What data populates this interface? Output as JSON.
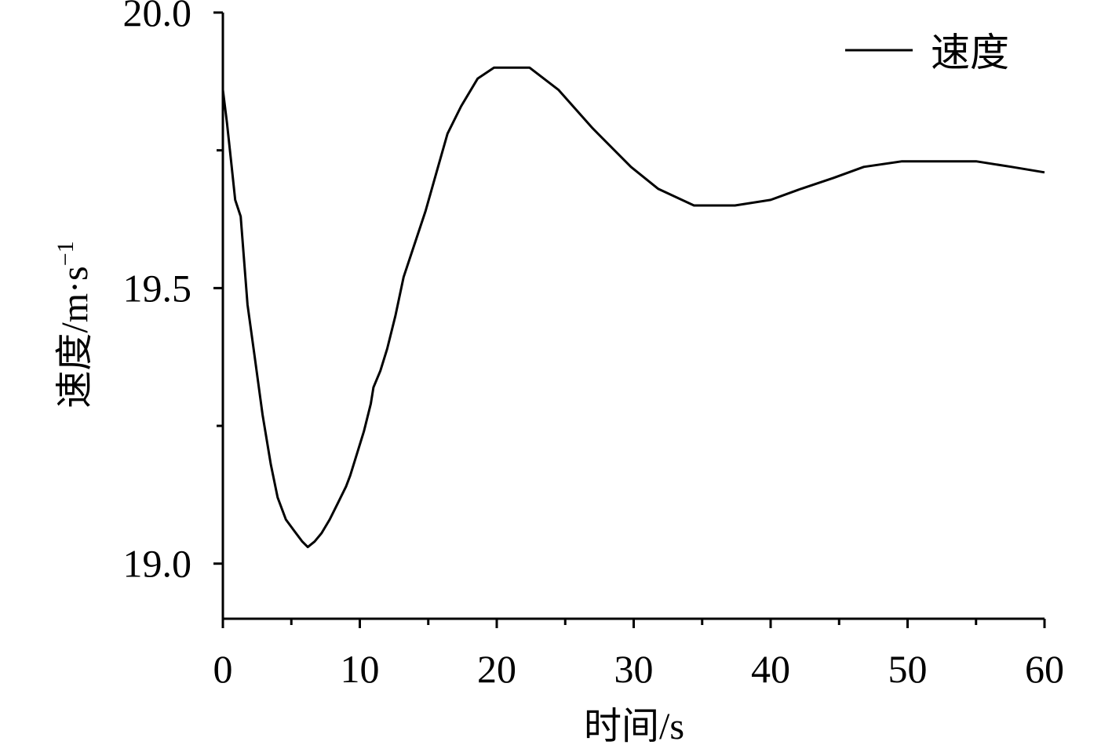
{
  "chart_data": {
    "type": "line",
    "title": "",
    "xlabel": "时间/s",
    "ylabel_main": "速度/m·s",
    "ylabel_sup": "−1",
    "xlim": [
      0,
      60
    ],
    "ylim": [
      18.9,
      20.0
    ],
    "x_ticks": [
      0,
      10,
      20,
      30,
      40,
      50,
      60
    ],
    "x_tick_labels": [
      "0",
      "10",
      "20",
      "30",
      "40",
      "50",
      "60"
    ],
    "x_minor_ticks": [
      5,
      15,
      25,
      35,
      45,
      55
    ],
    "y_ticks": [
      19.0,
      19.5,
      20.0
    ],
    "y_tick_labels": [
      "19.0",
      "19.5",
      "20.0"
    ],
    "y_minor_ticks": [
      19.25,
      19.75
    ],
    "grid": false,
    "legend_position": "top-right",
    "series": [
      {
        "name": "速度",
        "color": "#000000",
        "x": [
          0,
          0.3,
          0.6,
          0.9,
          1.3,
          1.8,
          2.3,
          2.9,
          3.5,
          4.0,
          4.6,
          5.2,
          5.8,
          6.2,
          6.7,
          7.2,
          7.8,
          8.4,
          9.0,
          9.3,
          9.8,
          10.3,
          10.8,
          11.0,
          11.5,
          12.0,
          12.6,
          13.2,
          14.0,
          14.8,
          15.6,
          16.4,
          17.4,
          18.6,
          19.8,
          21.0,
          22.4,
          24.5,
          27.0,
          29.8,
          31.8,
          34.4,
          37.4,
          40.0,
          42.2,
          44.6,
          46.8,
          49.6,
          52.2,
          55.0,
          57.6,
          60.0
        ]
      }
    ],
    "y_values": [
      19.86,
      19.8,
      19.73,
      19.66,
      19.63,
      19.47,
      19.38,
      19.27,
      19.18,
      19.12,
      19.08,
      19.06,
      19.04,
      19.03,
      19.04,
      19.055,
      19.08,
      19.11,
      19.14,
      19.16,
      19.2,
      19.24,
      19.29,
      19.32,
      19.35,
      19.39,
      19.45,
      19.52,
      19.58,
      19.64,
      19.71,
      19.78,
      19.83,
      19.88,
      19.9,
      19.9,
      19.9,
      19.86,
      19.79,
      19.72,
      19.68,
      19.65,
      19.65,
      19.66,
      19.68,
      19.7,
      19.72,
      19.73,
      19.73,
      19.73,
      19.72,
      19.71
    ]
  }
}
